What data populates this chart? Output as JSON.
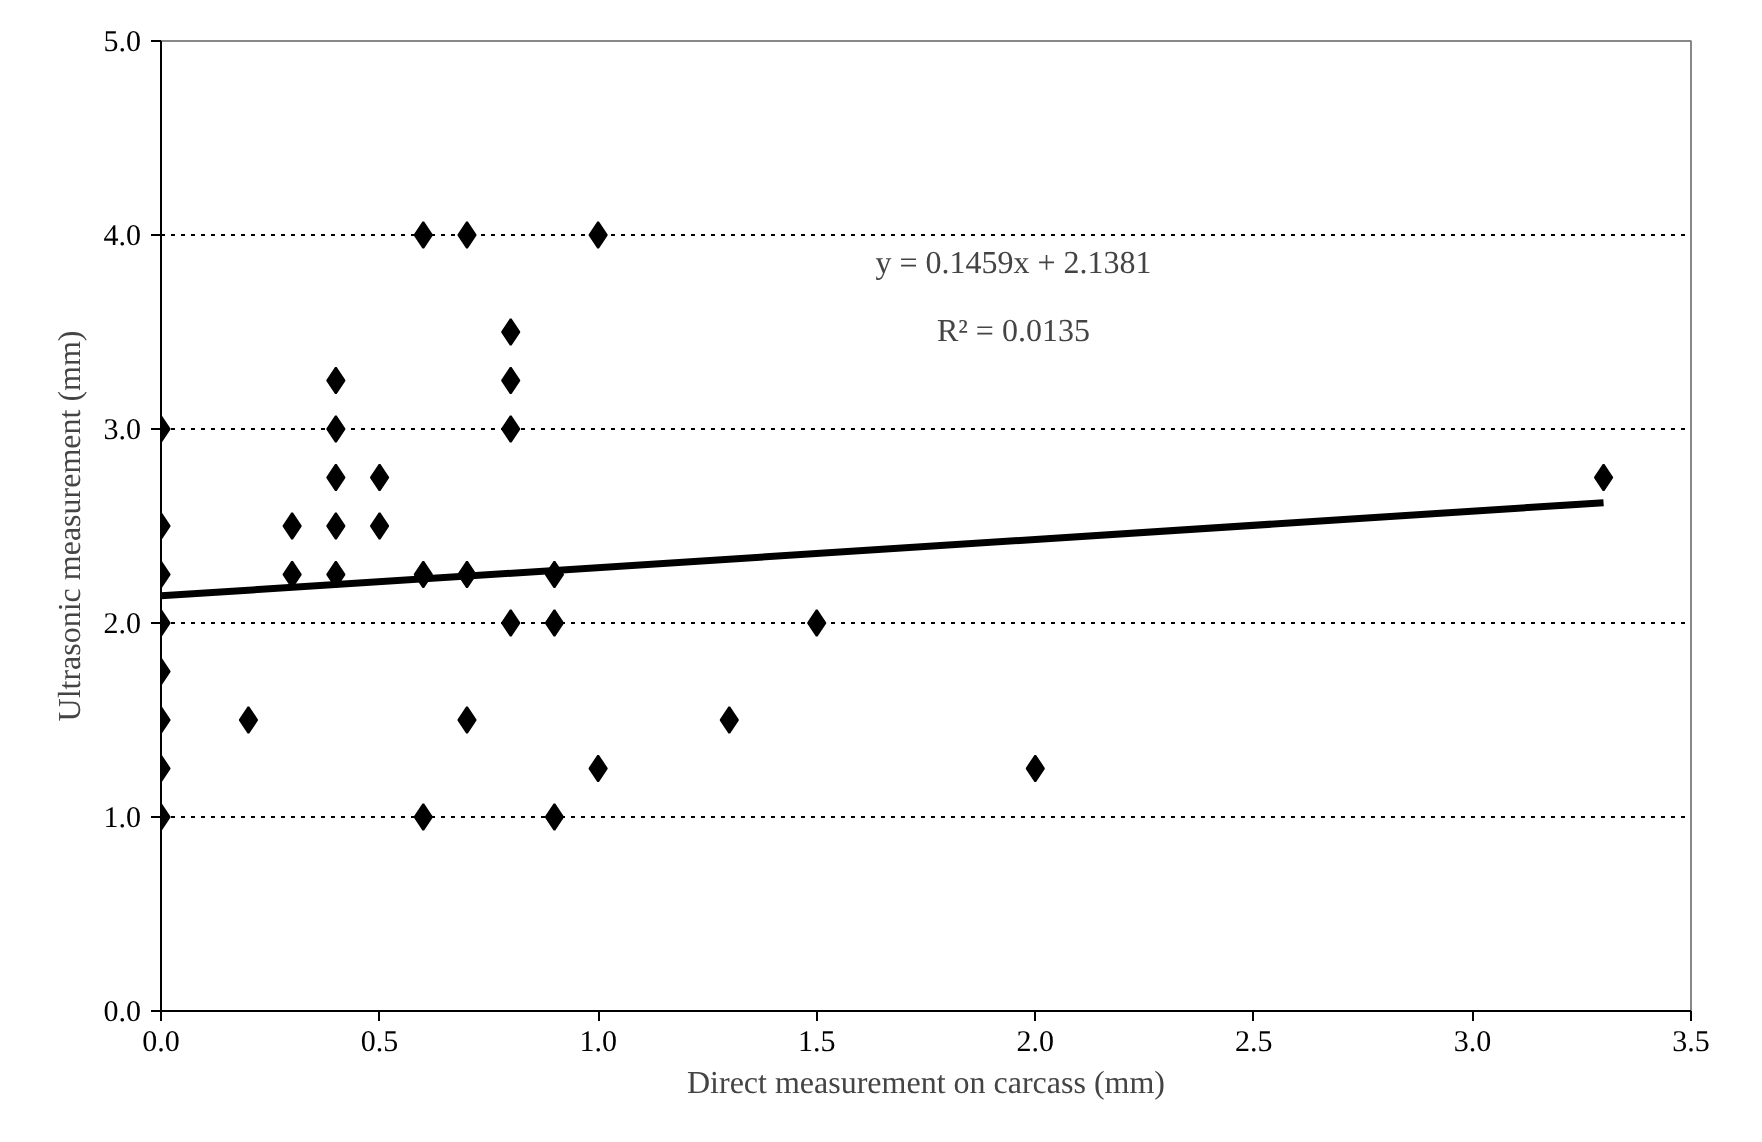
{
  "chart_data": {
    "type": "scatter",
    "xlabel": "Direct measurement on carcass (mm)",
    "ylabel": "Ultrasonic measurement (mm)",
    "xlim": [
      0,
      3.5
    ],
    "ylim": [
      0,
      5
    ],
    "xticks": [
      {
        "value": 0,
        "label": "0.0"
      },
      {
        "value": 0.5,
        "label": "0.5"
      },
      {
        "value": 1,
        "label": "1.0"
      },
      {
        "value": 1.5,
        "label": "1.5"
      },
      {
        "value": 2,
        "label": "2.0"
      },
      {
        "value": 2.5,
        "label": "2.5"
      },
      {
        "value": 3,
        "label": "3.0"
      },
      {
        "value": 3.5,
        "label": "3.5"
      }
    ],
    "yticks": [
      {
        "value": 0,
        "label": "0.0"
      },
      {
        "value": 1,
        "label": "1.0"
      },
      {
        "value": 2,
        "label": "2.0"
      },
      {
        "value": 3,
        "label": "3.0"
      },
      {
        "value": 4,
        "label": "4.0"
      },
      {
        "value": 5,
        "label": "5.0"
      }
    ],
    "grid": "y",
    "marker": "diamond",
    "annotations": [
      "y = 0.1459x + 2.1381",
      "R² = 0.0135"
    ],
    "series": [
      {
        "color": "#000000",
        "x": [
          0,
          0,
          0,
          0,
          0,
          0,
          0,
          0,
          0.2,
          0.3,
          0.3,
          0.4,
          0.4,
          0.4,
          0.4,
          0.4,
          0.5,
          0.5,
          0.6,
          0.6,
          0.6,
          0.7,
          0.7,
          0.7,
          0.8,
          0.8,
          0.8,
          0.8,
          0.9,
          0.9,
          0.9,
          1.0,
          1.0,
          1.3,
          1.5,
          2.0,
          3.3
        ],
        "values": [
          3.0,
          2.5,
          2.25,
          2.0,
          1.75,
          1.5,
          1.25,
          1.0,
          1.5,
          2.5,
          2.25,
          3.25,
          3.0,
          2.75,
          2.5,
          2.25,
          2.75,
          2.5,
          4.0,
          2.25,
          1.0,
          4.0,
          2.25,
          1.5,
          3.5,
          3.25,
          3.0,
          2.0,
          2.25,
          2.0,
          1.0,
          4.0,
          1.25,
          1.5,
          2.0,
          1.25,
          2.75
        ]
      },
      {
        "type": "line",
        "marker": "none",
        "color": "#000000",
        "x": [
          0,
          3.3
        ],
        "values": [
          2.14,
          2.62
        ]
      }
    ]
  }
}
